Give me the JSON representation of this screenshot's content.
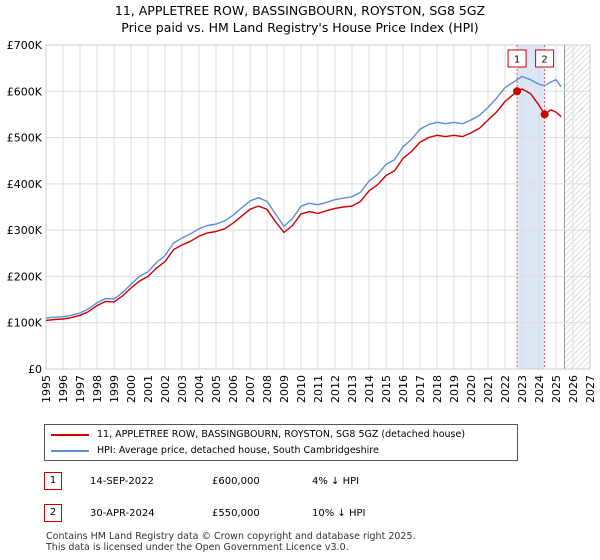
{
  "chart_data": {
    "type": "line",
    "title": "11, APPLETREE ROW, BASSINGBOURN, ROYSTON, SG8 5GZ",
    "subtitle": "Price paid vs. HM Land Registry's House Price Index (HPI)",
    "xlim": [
      1995,
      2027
    ],
    "ylim": [
      0,
      700000
    ],
    "xticks": [
      1995,
      1996,
      1997,
      1998,
      1999,
      2000,
      2001,
      2002,
      2003,
      2004,
      2005,
      2006,
      2007,
      2008,
      2009,
      2010,
      2011,
      2012,
      2013,
      2014,
      2015,
      2016,
      2017,
      2018,
      2019,
      2020,
      2021,
      2022,
      2023,
      2024,
      2025,
      2026,
      2027
    ],
    "yticks": [
      {
        "value": 0,
        "label": "£0"
      },
      {
        "value": 100000,
        "label": "£100K"
      },
      {
        "value": 200000,
        "label": "£200K"
      },
      {
        "value": 300000,
        "label": "£300K"
      },
      {
        "value": 400000,
        "label": "£400K"
      },
      {
        "value": 500000,
        "label": "£500K"
      },
      {
        "value": 600000,
        "label": "£600K"
      },
      {
        "value": 700000,
        "label": "£700K"
      }
    ],
    "grid": true,
    "highlight_span": [
      2022.71,
      2024.33
    ],
    "forecast_start": 2025.5,
    "series": [
      {
        "name": "11, APPLETREE ROW, BASSINGBOURN, ROYSTON, SG8 5GZ (detached house)",
        "color": "#cc0000",
        "x": [
          1995,
          1995.5,
          1996,
          1996.5,
          1997,
          1997.5,
          1998,
          1998.5,
          1999,
          1999.5,
          2000,
          2000.5,
          2001,
          2001.5,
          2002,
          2002.5,
          2003,
          2003.5,
          2004,
          2004.5,
          2005,
          2005.5,
          2006,
          2006.5,
          2007,
          2007.5,
          2008,
          2008.5,
          2009,
          2009.5,
          2010,
          2010.5,
          2011,
          2011.5,
          2012,
          2012.5,
          2013,
          2013.5,
          2014,
          2014.5,
          2015,
          2015.5,
          2016,
          2016.5,
          2017,
          2017.5,
          2018,
          2018.5,
          2019,
          2019.5,
          2020,
          2020.5,
          2021,
          2021.5,
          2022,
          2022.71,
          2023,
          2023.5,
          2024,
          2024.33,
          2024.7,
          2025,
          2025.3
        ],
        "values": [
          105000,
          107000,
          108000,
          111000,
          116000,
          124000,
          137000,
          146000,
          145000,
          158000,
          175000,
          190000,
          200000,
          218000,
          232000,
          258000,
          268000,
          276000,
          287000,
          294000,
          297000,
          303000,
          315000,
          330000,
          345000,
          352000,
          345000,
          318000,
          295000,
          310000,
          335000,
          340000,
          336000,
          342000,
          347000,
          350000,
          352000,
          362000,
          385000,
          398000,
          418000,
          428000,
          455000,
          470000,
          490000,
          500000,
          505000,
          502000,
          505000,
          502000,
          510000,
          520000,
          538000,
          555000,
          578000,
          600000,
          605000,
          595000,
          570000,
          550000,
          560000,
          555000,
          545000
        ]
      },
      {
        "name": "HPI: Average price, detached house, South Cambridgeshire",
        "color": "#5b8fd6",
        "x": [
          1995,
          1995.5,
          1996,
          1996.5,
          1997,
          1997.5,
          1998,
          1998.5,
          1999,
          1999.5,
          2000,
          2000.5,
          2001,
          2001.5,
          2002,
          2002.5,
          2003,
          2003.5,
          2004,
          2004.5,
          2005,
          2005.5,
          2006,
          2006.5,
          2007,
          2007.5,
          2008,
          2008.5,
          2009,
          2009.5,
          2010,
          2010.5,
          2011,
          2011.5,
          2012,
          2012.5,
          2013,
          2013.5,
          2014,
          2014.5,
          2015,
          2015.5,
          2016,
          2016.5,
          2017,
          2017.5,
          2018,
          2018.5,
          2019,
          2019.5,
          2020,
          2020.5,
          2021,
          2021.5,
          2022,
          2022.71,
          2023,
          2023.5,
          2024,
          2024.33,
          2024.7,
          2025,
          2025.3
        ],
        "values": [
          110000,
          112000,
          113000,
          116000,
          121000,
          130000,
          143000,
          152000,
          151000,
          165000,
          183000,
          200000,
          210000,
          230000,
          245000,
          272000,
          283000,
          292000,
          303000,
          310000,
          313000,
          320000,
          332000,
          348000,
          363000,
          370000,
          362000,
          335000,
          308000,
          325000,
          352000,
          358000,
          355000,
          360000,
          366000,
          369000,
          372000,
          382000,
          406000,
          420000,
          442000,
          452000,
          480000,
          496000,
          518000,
          528000,
          533000,
          530000,
          533000,
          530000,
          538000,
          548000,
          565000,
          585000,
          608000,
          625000,
          632000,
          625000,
          615000,
          612000,
          620000,
          625000,
          610000
        ]
      }
    ],
    "markers": [
      {
        "label": "1",
        "x": 2022.71,
        "y": 600000
      },
      {
        "label": "2",
        "x": 2024.33,
        "y": 550000
      }
    ]
  },
  "legend": {
    "property_label": "11, APPLETREE ROW, BASSINGBOURN, ROYSTON, SG8 5GZ (detached house)",
    "hpi_label": "HPI: Average price, detached house, South Cambridgeshire"
  },
  "sales": [
    {
      "num": "1",
      "date": "14-SEP-2022",
      "price": "£600,000",
      "hpi": "4% ↓ HPI"
    },
    {
      "num": "2",
      "date": "30-APR-2024",
      "price": "£550,000",
      "hpi": "10% ↓ HPI"
    }
  ],
  "footer": {
    "line1": "Contains HM Land Registry data © Crown copyright and database right 2025.",
    "line2": "This data is licensed under the Open Government Licence v3.0."
  },
  "colors": {
    "property": "#cc0000",
    "hpi": "#5b8fd6",
    "highlight": "#dde6f7",
    "grid": "#dddddd"
  }
}
